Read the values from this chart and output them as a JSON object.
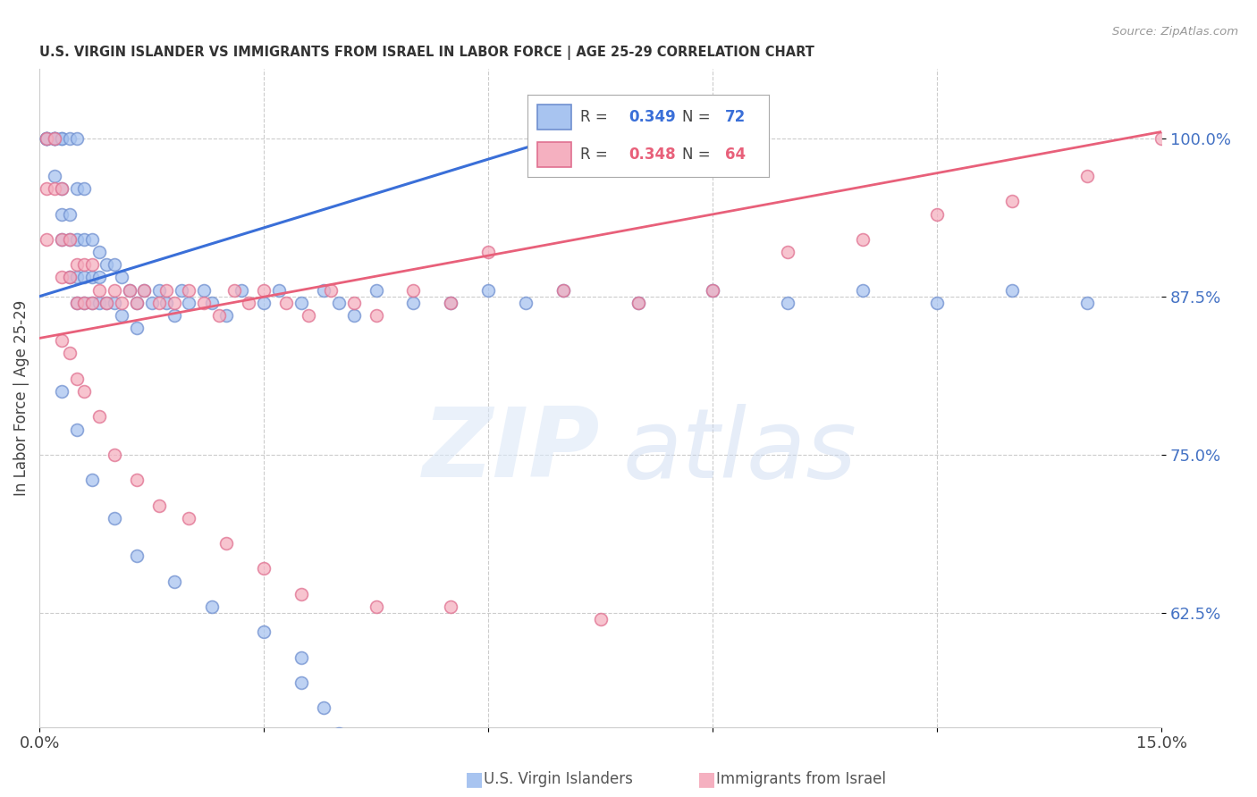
{
  "title": "U.S. VIRGIN ISLANDER VS IMMIGRANTS FROM ISRAEL IN LABOR FORCE | AGE 25-29 CORRELATION CHART",
  "source": "Source: ZipAtlas.com",
  "ylabel": "In Labor Force | Age 25-29",
  "ytick_labels": [
    "62.5%",
    "75.0%",
    "87.5%",
    "100.0%"
  ],
  "ytick_values": [
    0.625,
    0.75,
    0.875,
    1.0
  ],
  "xlim": [
    0.0,
    0.15
  ],
  "ylim": [
    0.535,
    1.055
  ],
  "blue_color": "#a8c4f0",
  "pink_color": "#f5b0c0",
  "blue_edge_color": "#7090d0",
  "pink_edge_color": "#e07090",
  "blue_line_color": "#3a6fd8",
  "pink_line_color": "#e8607a",
  "legend_blue_r": "0.349",
  "legend_blue_n": "72",
  "legend_pink_r": "0.348",
  "legend_pink_n": "64",
  "blue_line_x0": 0.0,
  "blue_line_y0": 0.875,
  "blue_line_x1": 0.072,
  "blue_line_y1": 1.005,
  "pink_line_x0": 0.0,
  "pink_line_y0": 0.842,
  "pink_line_x1": 0.15,
  "pink_line_y1": 1.005,
  "blue_x": [
    0.001,
    0.001,
    0.001,
    0.001,
    0.002,
    0.002,
    0.002,
    0.002,
    0.002,
    0.003,
    0.003,
    0.003,
    0.003,
    0.003,
    0.004,
    0.004,
    0.004,
    0.004,
    0.005,
    0.005,
    0.005,
    0.005,
    0.005,
    0.006,
    0.006,
    0.006,
    0.006,
    0.007,
    0.007,
    0.007,
    0.008,
    0.008,
    0.008,
    0.009,
    0.009,
    0.01,
    0.01,
    0.011,
    0.011,
    0.012,
    0.013,
    0.013,
    0.014,
    0.015,
    0.016,
    0.017,
    0.018,
    0.019,
    0.02,
    0.022,
    0.023,
    0.025,
    0.027,
    0.03,
    0.032,
    0.035,
    0.038,
    0.04,
    0.042,
    0.045,
    0.05,
    0.055,
    0.06,
    0.065,
    0.07,
    0.08,
    0.09,
    0.1,
    0.11,
    0.12,
    0.13,
    0.14
  ],
  "blue_y": [
    1.0,
    1.0,
    1.0,
    1.0,
    1.0,
    1.0,
    1.0,
    1.0,
    0.97,
    1.0,
    1.0,
    0.96,
    0.94,
    0.92,
    1.0,
    0.94,
    0.92,
    0.89,
    1.0,
    0.96,
    0.92,
    0.89,
    0.87,
    0.96,
    0.92,
    0.89,
    0.87,
    0.92,
    0.89,
    0.87,
    0.91,
    0.89,
    0.87,
    0.9,
    0.87,
    0.9,
    0.87,
    0.89,
    0.86,
    0.88,
    0.87,
    0.85,
    0.88,
    0.87,
    0.88,
    0.87,
    0.86,
    0.88,
    0.87,
    0.88,
    0.87,
    0.86,
    0.88,
    0.87,
    0.88,
    0.87,
    0.88,
    0.87,
    0.86,
    0.88,
    0.87,
    0.87,
    0.88,
    0.87,
    0.88,
    0.87,
    0.88,
    0.87,
    0.88,
    0.87,
    0.88,
    0.87
  ],
  "blue_y_outliers": [
    0.8,
    0.77,
    0.73,
    0.7,
    0.67,
    0.65,
    0.63,
    0.61,
    0.59,
    0.57,
    0.55,
    0.53
  ],
  "blue_x_outliers": [
    0.003,
    0.005,
    0.007,
    0.01,
    0.013,
    0.018,
    0.023,
    0.03,
    0.035,
    0.035,
    0.038,
    0.04
  ],
  "pink_x": [
    0.001,
    0.001,
    0.001,
    0.002,
    0.002,
    0.003,
    0.003,
    0.003,
    0.004,
    0.004,
    0.005,
    0.005,
    0.006,
    0.006,
    0.007,
    0.007,
    0.008,
    0.009,
    0.01,
    0.011,
    0.012,
    0.013,
    0.014,
    0.016,
    0.017,
    0.018,
    0.02,
    0.022,
    0.024,
    0.026,
    0.028,
    0.03,
    0.033,
    0.036,
    0.039,
    0.042,
    0.045,
    0.05,
    0.055,
    0.06,
    0.07,
    0.08,
    0.09,
    0.1,
    0.11,
    0.12,
    0.13,
    0.14,
    0.15
  ],
  "pink_y": [
    1.0,
    0.96,
    0.92,
    1.0,
    0.96,
    0.96,
    0.92,
    0.89,
    0.92,
    0.89,
    0.9,
    0.87,
    0.9,
    0.87,
    0.9,
    0.87,
    0.88,
    0.87,
    0.88,
    0.87,
    0.88,
    0.87,
    0.88,
    0.87,
    0.88,
    0.87,
    0.88,
    0.87,
    0.86,
    0.88,
    0.87,
    0.88,
    0.87,
    0.86,
    0.88,
    0.87,
    0.86,
    0.88,
    0.87,
    0.91,
    0.88,
    0.87,
    0.88,
    0.91,
    0.92,
    0.94,
    0.95,
    0.97,
    1.0
  ],
  "pink_y_outliers": [
    0.84,
    0.83,
    0.81,
    0.8,
    0.78,
    0.75,
    0.73,
    0.71,
    0.7,
    0.68,
    0.66,
    0.64,
    0.63,
    0.63,
    0.62
  ],
  "pink_x_outliers": [
    0.003,
    0.004,
    0.005,
    0.006,
    0.008,
    0.01,
    0.013,
    0.016,
    0.02,
    0.025,
    0.03,
    0.035,
    0.045,
    0.055,
    0.075
  ]
}
